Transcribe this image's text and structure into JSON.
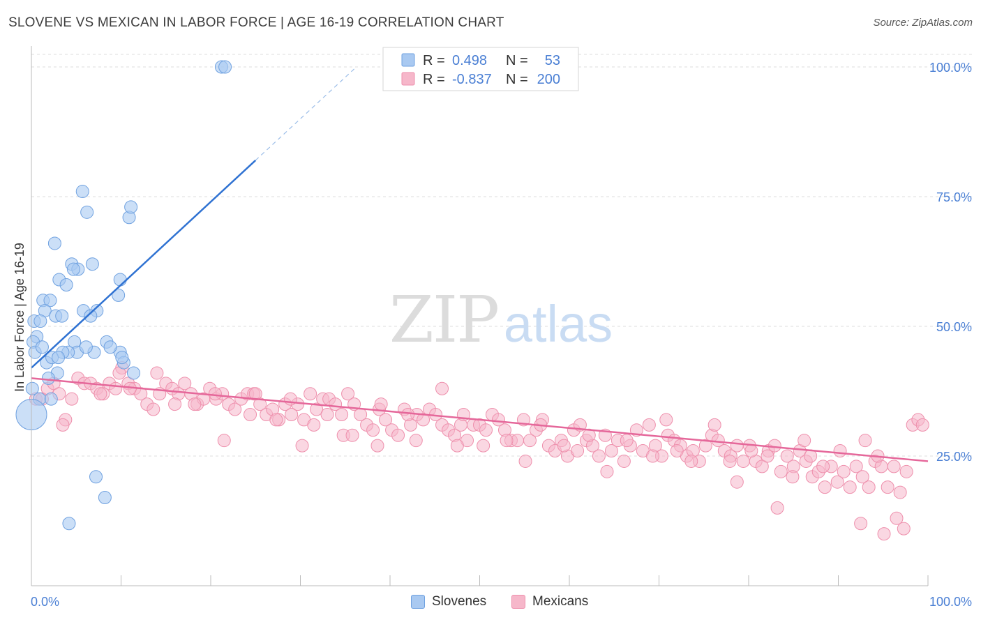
{
  "header": {
    "title": "SLOVENE VS MEXICAN IN LABOR FORCE | AGE 16-19 CORRELATION CHART",
    "source": "Source: ZipAtlas.com"
  },
  "watermark": {
    "zip": "ZIP",
    "atlas": "atlas"
  },
  "colors": {
    "slovene_fill": "#a9c9f1",
    "slovene_stroke": "#6fa1e0",
    "slovene_line": "#2f72d2",
    "mexican_fill": "#f6b7ca",
    "mexican_stroke": "#ee8fac",
    "mexican_line": "#e5679a",
    "axis_label": "#4a7fd4",
    "grid": "#dddddd"
  },
  "legend_top": {
    "rows": [
      {
        "r_label": "R =",
        "r_value": "0.498",
        "n_label": "N =",
        "n_value": "53"
      },
      {
        "r_label": "R =",
        "r_value": "-0.837",
        "n_label": "N =",
        "n_value": "200"
      }
    ]
  },
  "legend_bottom": [
    "Slovenes",
    "Mexicans"
  ],
  "chart_data": {
    "type": "scatter",
    "title": "SLOVENE VS MEXICAN IN LABOR FORCE | AGE 16-19 CORRELATION CHART",
    "xlabel": "",
    "ylabel": "In Labor Force | Age 16-19",
    "xlim": [
      0,
      100
    ],
    "ylim": [
      0,
      102
    ],
    "x_tick_labels": [
      "0.0%",
      "100.0%"
    ],
    "y_tick_labels": [
      "25.0%",
      "50.0%",
      "75.0%",
      "100.0%"
    ],
    "y_ticks": [
      25,
      50,
      75,
      100
    ],
    "grid": "horizontal dashed",
    "legend_position": "top-center",
    "series": [
      {
        "name": "Slovenes",
        "r": 0.498,
        "n": 53,
        "trend": {
          "x0": 0,
          "y0": 42,
          "x1": 25,
          "y1": 82,
          "dash_to_x": 36
        },
        "points": [
          [
            21.2,
            100
          ],
          [
            21.6,
            100
          ],
          [
            5.7,
            76
          ],
          [
            6.2,
            72
          ],
          [
            10.9,
            71
          ],
          [
            11.1,
            73
          ],
          [
            2.6,
            66
          ],
          [
            4.5,
            62
          ],
          [
            6.8,
            62
          ],
          [
            5.2,
            61
          ],
          [
            4.7,
            61
          ],
          [
            3.1,
            59
          ],
          [
            3.9,
            58
          ],
          [
            9.9,
            59
          ],
          [
            9.7,
            56
          ],
          [
            1.3,
            55
          ],
          [
            2.1,
            55
          ],
          [
            5.8,
            53
          ],
          [
            7.3,
            53
          ],
          [
            1.5,
            53
          ],
          [
            2.7,
            52
          ],
          [
            3.4,
            52
          ],
          [
            6.6,
            52
          ],
          [
            0.3,
            51
          ],
          [
            1.0,
            51
          ],
          [
            4.8,
            47
          ],
          [
            0.6,
            48
          ],
          [
            0.2,
            47
          ],
          [
            5.1,
            45
          ],
          [
            4.1,
            45
          ],
          [
            8.4,
            47
          ],
          [
            2.9,
            41
          ],
          [
            1.9,
            40
          ],
          [
            9.9,
            45
          ],
          [
            7.0,
            45
          ],
          [
            10.3,
            43
          ],
          [
            11.4,
            41
          ],
          [
            0.1,
            38
          ],
          [
            0.9,
            36
          ],
          [
            2.2,
            36
          ],
          [
            7.2,
            21
          ],
          [
            8.2,
            17
          ],
          [
            4.2,
            12
          ],
          [
            3.5,
            45
          ],
          [
            1.7,
            43
          ],
          [
            2.3,
            44
          ],
          [
            8.8,
            46
          ],
          [
            10.1,
            44
          ],
          [
            0.4,
            45
          ],
          [
            3.0,
            44
          ],
          [
            6.1,
            46
          ],
          [
            1.2,
            46
          ],
          [
            0.0,
            33
          ]
        ]
      },
      {
        "name": "Mexicans",
        "r": -0.837,
        "n": 200,
        "trend": {
          "x0": 0,
          "y0": 40,
          "x1": 100,
          "y1": 24
        },
        "points": [
          [
            0.5,
            36
          ],
          [
            1.2,
            36
          ],
          [
            1.8,
            38
          ],
          [
            2.5,
            39
          ],
          [
            3.1,
            37
          ],
          [
            3.8,
            32
          ],
          [
            4.5,
            36
          ],
          [
            5.2,
            40
          ],
          [
            5.9,
            39
          ],
          [
            6.6,
            39
          ],
          [
            7.3,
            38
          ],
          [
            8.0,
            37
          ],
          [
            8.7,
            39
          ],
          [
            9.4,
            38
          ],
          [
            10.1,
            42
          ],
          [
            10.8,
            39
          ],
          [
            11.5,
            38
          ],
          [
            12.2,
            37
          ],
          [
            12.9,
            35
          ],
          [
            13.6,
            34
          ],
          [
            14.3,
            37
          ],
          [
            15.0,
            39
          ],
          [
            15.7,
            38
          ],
          [
            16.4,
            37
          ],
          [
            17.1,
            39
          ],
          [
            17.8,
            37
          ],
          [
            18.5,
            35
          ],
          [
            19.2,
            36
          ],
          [
            19.9,
            38
          ],
          [
            20.6,
            36
          ],
          [
            21.3,
            37
          ],
          [
            22.0,
            35
          ],
          [
            22.7,
            34
          ],
          [
            23.4,
            36
          ],
          [
            24.1,
            37
          ],
          [
            24.8,
            37
          ],
          [
            25.5,
            35
          ],
          [
            26.2,
            33
          ],
          [
            26.9,
            34
          ],
          [
            27.6,
            32
          ],
          [
            28.3,
            35
          ],
          [
            29.0,
            33
          ],
          [
            29.7,
            35
          ],
          [
            30.4,
            32
          ],
          [
            31.1,
            37
          ],
          [
            31.8,
            34
          ],
          [
            32.5,
            36
          ],
          [
            33.2,
            36
          ],
          [
            33.9,
            35
          ],
          [
            34.6,
            33
          ],
          [
            35.3,
            37
          ],
          [
            36.0,
            35
          ],
          [
            36.7,
            33
          ],
          [
            37.4,
            31
          ],
          [
            38.1,
            30
          ],
          [
            38.8,
            34
          ],
          [
            39.5,
            32
          ],
          [
            40.2,
            30
          ],
          [
            40.9,
            29
          ],
          [
            41.6,
            34
          ],
          [
            42.3,
            31
          ],
          [
            43.0,
            33
          ],
          [
            43.7,
            32
          ],
          [
            44.4,
            34
          ],
          [
            45.1,
            33
          ],
          [
            45.8,
            31
          ],
          [
            46.5,
            30
          ],
          [
            47.2,
            29
          ],
          [
            47.9,
            31
          ],
          [
            48.6,
            28
          ],
          [
            49.3,
            31
          ],
          [
            50.0,
            31
          ],
          [
            50.7,
            30
          ],
          [
            51.4,
            33
          ],
          [
            52.1,
            32
          ],
          [
            52.8,
            30
          ],
          [
            53.5,
            28
          ],
          [
            54.2,
            28
          ],
          [
            54.9,
            32
          ],
          [
            55.6,
            28
          ],
          [
            56.3,
            30
          ],
          [
            57.0,
            32
          ],
          [
            57.7,
            27
          ],
          [
            58.4,
            26
          ],
          [
            59.1,
            28
          ],
          [
            59.8,
            25
          ],
          [
            60.5,
            30
          ],
          [
            61.2,
            31
          ],
          [
            61.9,
            28
          ],
          [
            62.6,
            27
          ],
          [
            63.3,
            25
          ],
          [
            64.0,
            29
          ],
          [
            64.7,
            26
          ],
          [
            65.4,
            28
          ],
          [
            66.1,
            24
          ],
          [
            66.8,
            27
          ],
          [
            67.5,
            30
          ],
          [
            68.2,
            26
          ],
          [
            68.9,
            31
          ],
          [
            69.6,
            27
          ],
          [
            70.3,
            25
          ],
          [
            71.0,
            29
          ],
          [
            71.7,
            28
          ],
          [
            72.4,
            27
          ],
          [
            73.1,
            25
          ],
          [
            73.8,
            26
          ],
          [
            74.5,
            24
          ],
          [
            75.2,
            27
          ],
          [
            75.9,
            29
          ],
          [
            76.6,
            28
          ],
          [
            77.3,
            26
          ],
          [
            78.0,
            25
          ],
          [
            78.7,
            27
          ],
          [
            79.4,
            24
          ],
          [
            80.1,
            27
          ],
          [
            80.8,
            24
          ],
          [
            81.5,
            23
          ],
          [
            82.2,
            26
          ],
          [
            82.9,
            27
          ],
          [
            83.6,
            22
          ],
          [
            84.3,
            25
          ],
          [
            85.0,
            23
          ],
          [
            85.7,
            26
          ],
          [
            86.4,
            24
          ],
          [
            87.1,
            21
          ],
          [
            87.8,
            22
          ],
          [
            88.5,
            19
          ],
          [
            89.2,
            23
          ],
          [
            89.9,
            20
          ],
          [
            90.6,
            22
          ],
          [
            91.3,
            19
          ],
          [
            92.0,
            23
          ],
          [
            92.7,
            21
          ],
          [
            93.4,
            19
          ],
          [
            94.1,
            24
          ],
          [
            94.8,
            23
          ],
          [
            95.5,
            19
          ],
          [
            96.2,
            23
          ],
          [
            96.9,
            18
          ],
          [
            97.6,
            22
          ],
          [
            98.3,
            31
          ],
          [
            98.9,
            32
          ],
          [
            99.4,
            31
          ],
          [
            83.2,
            15
          ],
          [
            96.5,
            13
          ],
          [
            95.1,
            10
          ],
          [
            97.3,
            11
          ],
          [
            92.5,
            12
          ],
          [
            14.0,
            41
          ],
          [
            3.5,
            31
          ],
          [
            21.5,
            28
          ],
          [
            30.2,
            27
          ],
          [
            34.8,
            29
          ],
          [
            38.6,
            27
          ],
          [
            47.5,
            27
          ],
          [
            53.0,
            28
          ],
          [
            55.1,
            24
          ],
          [
            60.9,
            26
          ],
          [
            66.4,
            28
          ],
          [
            69.3,
            25
          ],
          [
            73.6,
            24
          ],
          [
            77.9,
            24
          ],
          [
            82.1,
            25
          ],
          [
            86.9,
            25
          ],
          [
            94.4,
            25
          ],
          [
            45.8,
            38
          ],
          [
            28.9,
            36
          ],
          [
            18.2,
            35
          ],
          [
            9.8,
            41
          ],
          [
            25.0,
            37
          ],
          [
            33.0,
            33
          ],
          [
            39.0,
            35
          ],
          [
            42.9,
            28
          ],
          [
            50.4,
            27
          ],
          [
            56.8,
            31
          ],
          [
            62.2,
            29
          ],
          [
            70.8,
            32
          ],
          [
            76.2,
            31
          ],
          [
            80.3,
            26
          ],
          [
            86.2,
            28
          ],
          [
            90.2,
            26
          ],
          [
            93.0,
            28
          ],
          [
            7.7,
            37
          ],
          [
            11.0,
            38
          ],
          [
            16.0,
            35
          ],
          [
            20.5,
            37
          ],
          [
            24.4,
            33
          ],
          [
            27.3,
            32
          ],
          [
            31.5,
            31
          ],
          [
            35.8,
            29
          ],
          [
            42.0,
            33
          ],
          [
            48.2,
            33
          ],
          [
            59.4,
            27
          ],
          [
            64.2,
            22
          ],
          [
            72.0,
            26
          ],
          [
            78.7,
            20
          ],
          [
            84.9,
            21
          ],
          [
            88.3,
            23
          ]
        ]
      }
    ]
  }
}
